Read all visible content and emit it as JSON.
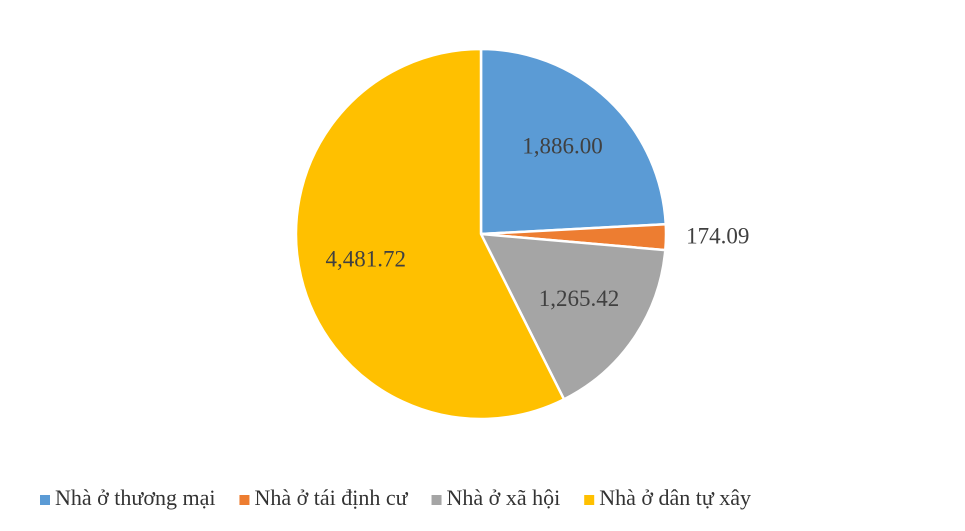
{
  "chart_data": {
    "type": "pie",
    "categories": [
      "Nhà ở thương mại",
      "Nhà ở tái định cư",
      "Nhà ở xã hội",
      "Nhà ở dân tự xây"
    ],
    "values": [
      1886.0,
      174.09,
      1265.42,
      4481.72
    ],
    "value_labels": [
      "1,886.00",
      "174.09",
      "1,265.42",
      "4,481.72"
    ],
    "colors": [
      "#5b9bd5",
      "#ed7d31",
      "#a5a5a5",
      "#ffc000"
    ],
    "legend": "bottom"
  }
}
